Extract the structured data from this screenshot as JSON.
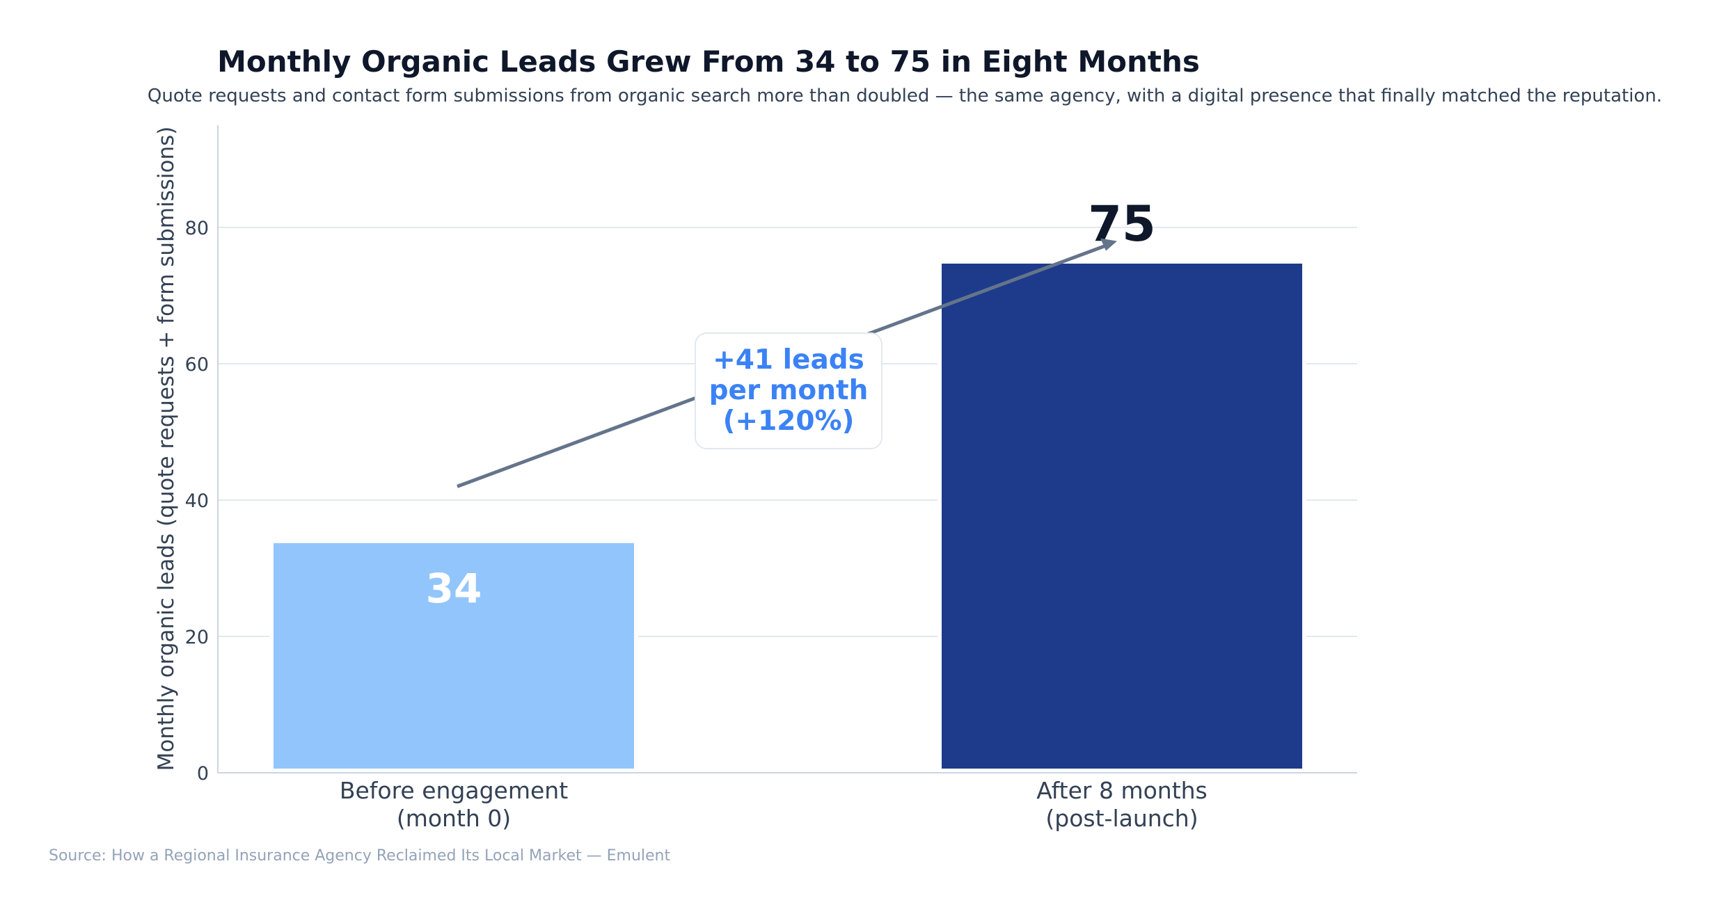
{
  "chart_data": {
    "type": "bar",
    "title": "Monthly Organic Leads Grew From 34 to 75 in Eight Months",
    "subtitle": "Quote requests and contact form submissions from organic search more than doubled — the same agency, with a digital presence that finally matched the reputation.",
    "ylabel": "Monthly organic leads (quote requests + form submissions)",
    "xlabel": "",
    "categories": [
      [
        "Before engagement",
        "(month 0)"
      ],
      [
        "After 8 months",
        "(post-launch)"
      ]
    ],
    "values": [
      34,
      75
    ],
    "value_labels": [
      "34",
      "75"
    ],
    "ylim": [
      0,
      95
    ],
    "yticks": [
      0,
      20,
      40,
      60,
      80
    ],
    "grid": true,
    "annotation": {
      "lines": [
        "+41 leads",
        "per month",
        "(+120%)"
      ],
      "arrow_from": [
        0,
        42
      ],
      "arrow_to": [
        1,
        78
      ]
    },
    "source": "Source: How a Regional Insurance Agency Reclaimed Its Local Market — Emulent",
    "colors": {
      "bar_before": "#93c5fd",
      "bar_after": "#1e3a8a",
      "label_inside": "#ffffff",
      "label_outside": "#0f172a",
      "annotation_text": "#3b82f6",
      "arrow": "#64748b",
      "grid": "#e2e8f0",
      "axis": "#cbd5e1"
    }
  }
}
